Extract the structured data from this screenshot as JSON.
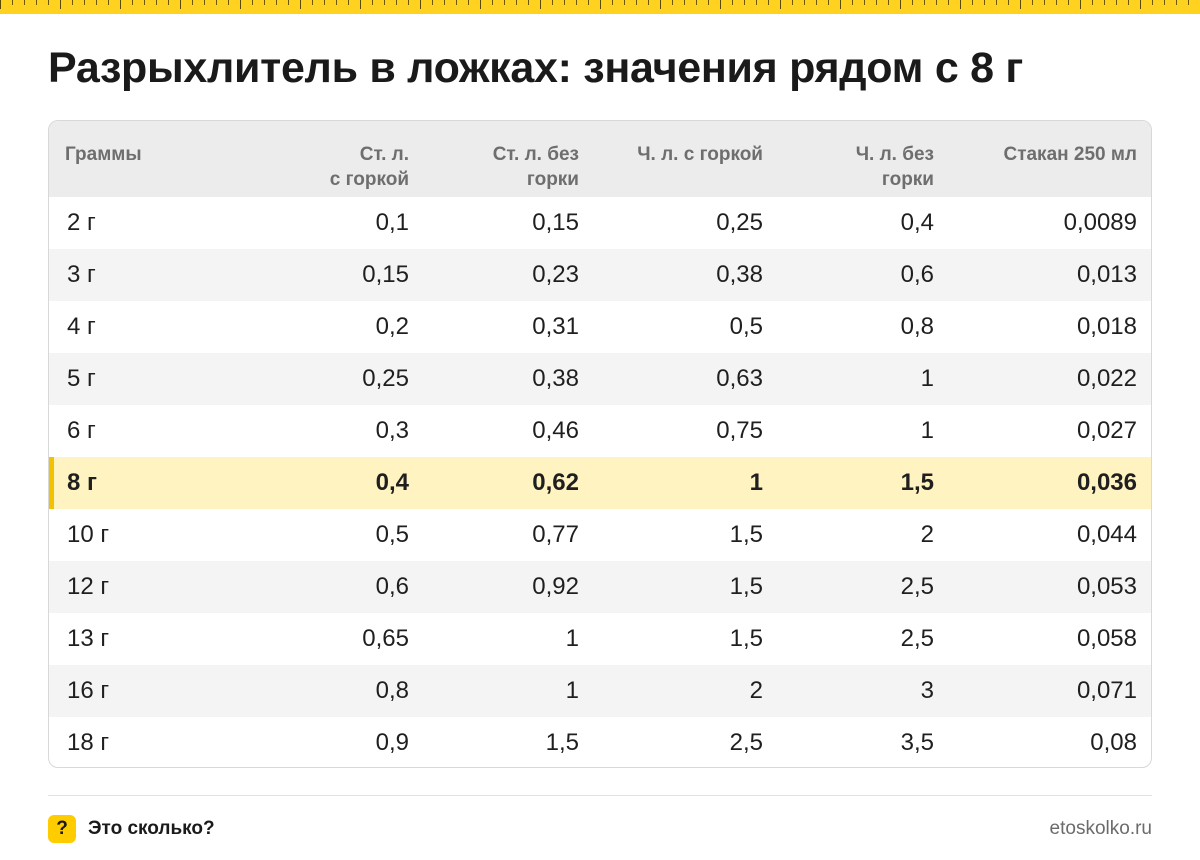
{
  "title": "Разрыхлитель в ложках: значения рядом с 8 г",
  "table": {
    "headers": [
      "Граммы",
      "Ст. л.\nс горкой",
      "Ст. л. без\nгорки",
      "Ч. л. с горкой",
      "Ч. л. без\nгорки",
      "Стакан 250 мл"
    ],
    "highlighted_row": 5,
    "rows": [
      [
        "2 г",
        "0,1",
        "0,15",
        "0,25",
        "0,4",
        "0,0089"
      ],
      [
        "3 г",
        "0,15",
        "0,23",
        "0,38",
        "0,6",
        "0,013"
      ],
      [
        "4 г",
        "0,2",
        "0,31",
        "0,5",
        "0,8",
        "0,018"
      ],
      [
        "5 г",
        "0,25",
        "0,38",
        "0,63",
        "1",
        "0,022"
      ],
      [
        "6 г",
        "0,3",
        "0,46",
        "0,75",
        "1",
        "0,027"
      ],
      [
        "8 г",
        "0,4",
        "0,62",
        "1",
        "1,5",
        "0,036"
      ],
      [
        "10 г",
        "0,5",
        "0,77",
        "1,5",
        "2",
        "0,044"
      ],
      [
        "12 г",
        "0,6",
        "0,92",
        "1,5",
        "2,5",
        "0,053"
      ],
      [
        "13 г",
        "0,65",
        "1",
        "1,5",
        "2,5",
        "0,058"
      ],
      [
        "16 г",
        "0,8",
        "1",
        "2",
        "3",
        "0,071"
      ],
      [
        "18 г",
        "0,9",
        "1,5",
        "2,5",
        "3,5",
        "0,08"
      ]
    ]
  },
  "footer": {
    "badge": "?",
    "brand": "Это сколько?",
    "site": "etoskolko.ru"
  },
  "colors": {
    "accent": "#ffcc00",
    "highlight_row": "#fff3c2",
    "highlight_bar": "#f2c200"
  }
}
